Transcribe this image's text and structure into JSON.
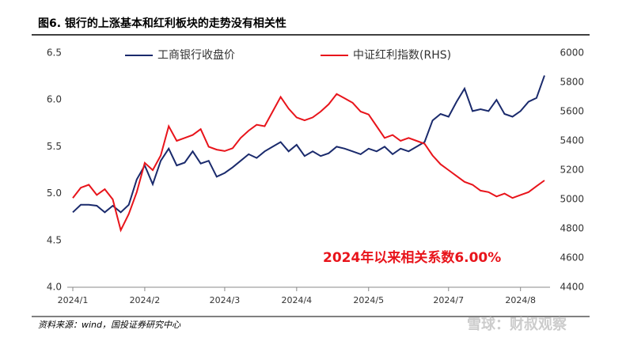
{
  "chart_data": {
    "type": "line",
    "title": "图6. 银行的上涨基本和红利板块的走势没有相关性",
    "source": "资料来源：wind，国投证券研究中心",
    "watermark": "雪球：财叔观察",
    "annotation": "2024年以来相关系数6.00%",
    "annotation_color": "#e8141b",
    "legend": "top",
    "grid": false,
    "categories": [
      "2024/1",
      null,
      null,
      null,
      null,
      null,
      null,
      null,
      null,
      "2024/2",
      null,
      null,
      null,
      null,
      null,
      null,
      null,
      null,
      null,
      "2024/3",
      null,
      null,
      null,
      null,
      null,
      null,
      null,
      null,
      "2024/4",
      null,
      null,
      null,
      null,
      null,
      null,
      null,
      null,
      "2024/5",
      null,
      null,
      null,
      null,
      null,
      null,
      null,
      null,
      null,
      "2024/7",
      null,
      null,
      null,
      null,
      null,
      null,
      null,
      null,
      "2024/8",
      null,
      null,
      null
    ],
    "series": [
      {
        "name": "工商银行收盘价",
        "color": "#1a2a6c",
        "axis": "y",
        "values": [
          4.8,
          4.88,
          4.88,
          4.87,
          4.8,
          4.87,
          4.8,
          4.88,
          5.15,
          5.3,
          5.1,
          5.35,
          5.48,
          5.3,
          5.33,
          5.45,
          5.32,
          5.35,
          5.18,
          5.22,
          5.28,
          5.35,
          5.42,
          5.38,
          5.45,
          5.5,
          5.55,
          5.45,
          5.52,
          5.4,
          5.45,
          5.4,
          5.43,
          5.5,
          5.48,
          5.45,
          5.42,
          5.48,
          5.45,
          5.5,
          5.42,
          5.48,
          5.45,
          5.5,
          5.55,
          5.78,
          5.85,
          5.82,
          5.98,
          6.12,
          5.88,
          5.9,
          5.88,
          6.0,
          5.85,
          5.82,
          5.88,
          5.98,
          6.02,
          6.26
        ]
      },
      {
        "name": "中证红利指数(RHS)",
        "color": "#e8141b",
        "axis": "y2",
        "values": [
          5010,
          5080,
          5100,
          5030,
          5070,
          5000,
          4790,
          4900,
          5050,
          5250,
          5200,
          5300,
          5500,
          5400,
          5420,
          5440,
          5480,
          5360,
          5340,
          5330,
          5350,
          5420,
          5470,
          5510,
          5500,
          5600,
          5700,
          5620,
          5560,
          5540,
          5560,
          5600,
          5650,
          5720,
          5690,
          5660,
          5600,
          5580,
          5500,
          5420,
          5440,
          5400,
          5420,
          5400,
          5380,
          5300,
          5240,
          5200,
          5160,
          5120,
          5100,
          5060,
          5050,
          5020,
          5040,
          5010,
          5030,
          5050,
          5090,
          5130
        ]
      }
    ],
    "ylim": [
      4.0,
      6.5
    ],
    "yticks": [
      {
        "value": 4,
        "label": "4.0"
      },
      4.5,
      {
        "value": 5,
        "label": "5.0"
      },
      5.5,
      {
        "value": 6,
        "label": "6.0"
      },
      6.5
    ],
    "y2lim": [
      4400,
      6000
    ],
    "y2ticks": [
      4400,
      4600,
      4800,
      5000,
      5200,
      5400,
      5600,
      5800,
      6000
    ]
  }
}
